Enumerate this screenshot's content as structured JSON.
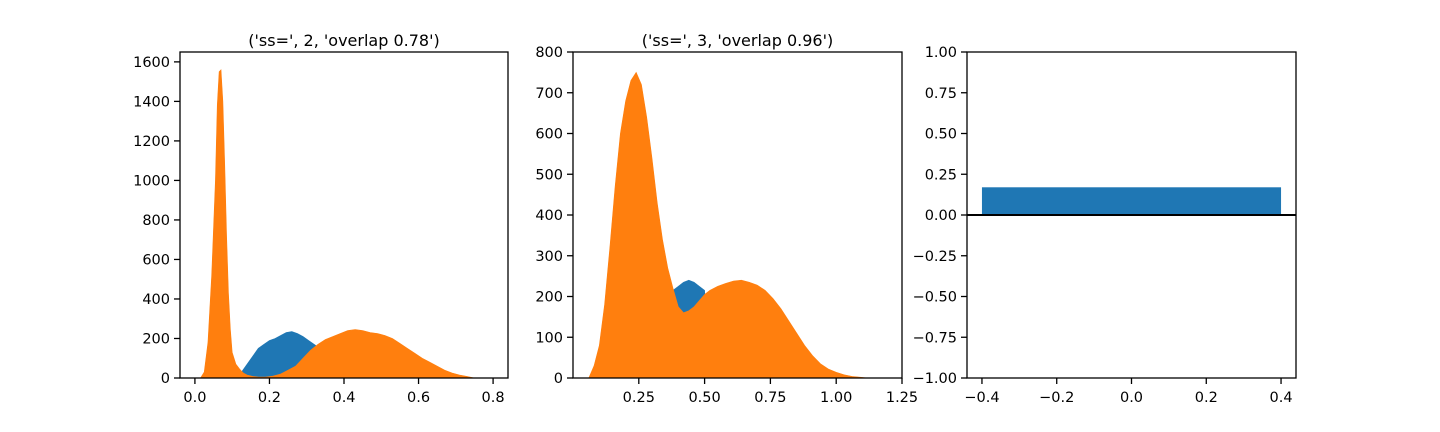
{
  "chart_data": [
    {
      "type": "histogram",
      "title": "('ss=', 2, 'overlap 0.78')",
      "xlim": [
        -0.04,
        0.84
      ],
      "ylim": [
        0,
        1650
      ],
      "xticks": [
        0.0,
        0.2,
        0.4,
        0.6,
        0.8
      ],
      "xtick_labels": [
        "0.0",
        "0.2",
        "0.4",
        "0.6",
        "0.8"
      ],
      "yticks": [
        0,
        200,
        400,
        600,
        800,
        1000,
        1200,
        1400,
        1600
      ],
      "ytick_labels": [
        "0",
        "200",
        "400",
        "600",
        "800",
        "1000",
        "1200",
        "1400",
        "1600"
      ],
      "grid": false,
      "series": [
        {
          "color": "#1f77b4",
          "points": [
            [
              0.11,
              0
            ],
            [
              0.125,
              30
            ],
            [
              0.14,
              70
            ],
            [
              0.155,
              110
            ],
            [
              0.17,
              150
            ],
            [
              0.185,
              170
            ],
            [
              0.2,
              190
            ],
            [
              0.215,
              200
            ],
            [
              0.23,
              215
            ],
            [
              0.245,
              230
            ],
            [
              0.26,
              235
            ],
            [
              0.275,
              225
            ],
            [
              0.29,
              210
            ],
            [
              0.305,
              190
            ],
            [
              0.32,
              170
            ],
            [
              0.335,
              150
            ],
            [
              0.35,
              0
            ]
          ]
        },
        {
          "color": "#ff7f0e",
          "points": [
            [
              0.015,
              0
            ],
            [
              0.025,
              30
            ],
            [
              0.035,
              180
            ],
            [
              0.045,
              520
            ],
            [
              0.055,
              1000
            ],
            [
              0.06,
              1380
            ],
            [
              0.065,
              1550
            ],
            [
              0.07,
              1560
            ],
            [
              0.075,
              1400
            ],
            [
              0.08,
              1080
            ],
            [
              0.085,
              720
            ],
            [
              0.09,
              430
            ],
            [
              0.095,
              250
            ],
            [
              0.1,
              130
            ],
            [
              0.11,
              70
            ],
            [
              0.12,
              45
            ],
            [
              0.13,
              25
            ],
            [
              0.14,
              15
            ],
            [
              0.155,
              8
            ],
            [
              0.17,
              5
            ],
            [
              0.19,
              5
            ],
            [
              0.21,
              10
            ],
            [
              0.23,
              20
            ],
            [
              0.25,
              40
            ],
            [
              0.27,
              60
            ],
            [
              0.29,
              100
            ],
            [
              0.31,
              140
            ],
            [
              0.33,
              170
            ],
            [
              0.35,
              195
            ],
            [
              0.37,
              210
            ],
            [
              0.39,
              225
            ],
            [
              0.41,
              240
            ],
            [
              0.43,
              245
            ],
            [
              0.45,
              240
            ],
            [
              0.47,
              230
            ],
            [
              0.49,
              225
            ],
            [
              0.51,
              215
            ],
            [
              0.53,
              200
            ],
            [
              0.55,
              175
            ],
            [
              0.57,
              150
            ],
            [
              0.59,
              125
            ],
            [
              0.61,
              100
            ],
            [
              0.63,
              80
            ],
            [
              0.65,
              60
            ],
            [
              0.67,
              40
            ],
            [
              0.69,
              25
            ],
            [
              0.71,
              15
            ],
            [
              0.73,
              8
            ],
            [
              0.75,
              0
            ]
          ]
        }
      ]
    },
    {
      "type": "histogram",
      "title": "('ss=', 3, 'overlap 0.96')",
      "xlim": [
        0.0,
        1.25
      ],
      "ylim": [
        0,
        800
      ],
      "xticks": [
        0.25,
        0.5,
        0.75,
        1.0,
        1.25
      ],
      "xtick_labels": [
        "0.25",
        "0.50",
        "0.75",
        "1.00",
        "1.25"
      ],
      "yticks": [
        0,
        100,
        200,
        300,
        400,
        500,
        600,
        700,
        800
      ],
      "ytick_labels": [
        "0",
        "100",
        "200",
        "300",
        "400",
        "500",
        "600",
        "700",
        "800"
      ],
      "grid": false,
      "series": [
        {
          "color": "#1f77b4",
          "points": [
            [
              0.34,
              0
            ],
            [
              0.36,
              200
            ],
            [
              0.38,
              215
            ],
            [
              0.4,
              225
            ],
            [
              0.42,
              235
            ],
            [
              0.44,
              240
            ],
            [
              0.46,
              235
            ],
            [
              0.48,
              225
            ],
            [
              0.5,
              215
            ],
            [
              0.52,
              0
            ]
          ]
        },
        {
          "color": "#ff7f0e",
          "points": [
            [
              0.06,
              0
            ],
            [
              0.08,
              30
            ],
            [
              0.1,
              80
            ],
            [
              0.12,
              180
            ],
            [
              0.14,
              320
            ],
            [
              0.16,
              470
            ],
            [
              0.18,
              600
            ],
            [
              0.2,
              680
            ],
            [
              0.22,
              730
            ],
            [
              0.24,
              750
            ],
            [
              0.26,
              720
            ],
            [
              0.28,
              640
            ],
            [
              0.3,
              540
            ],
            [
              0.32,
              430
            ],
            [
              0.34,
              340
            ],
            [
              0.36,
              270
            ],
            [
              0.38,
              220
            ],
            [
              0.4,
              175
            ],
            [
              0.42,
              160
            ],
            [
              0.44,
              165
            ],
            [
              0.46,
              175
            ],
            [
              0.48,
              190
            ],
            [
              0.5,
              205
            ],
            [
              0.52,
              215
            ],
            [
              0.55,
              225
            ],
            [
              0.58,
              232
            ],
            [
              0.61,
              238
            ],
            [
              0.64,
              240
            ],
            [
              0.67,
              235
            ],
            [
              0.7,
              228
            ],
            [
              0.73,
              215
            ],
            [
              0.76,
              195
            ],
            [
              0.79,
              170
            ],
            [
              0.82,
              140
            ],
            [
              0.85,
              110
            ],
            [
              0.88,
              80
            ],
            [
              0.91,
              55
            ],
            [
              0.94,
              35
            ],
            [
              0.97,
              22
            ],
            [
              1.0,
              14
            ],
            [
              1.03,
              8
            ],
            [
              1.06,
              4
            ],
            [
              1.09,
              2
            ],
            [
              1.12,
              0
            ]
          ]
        }
      ]
    },
    {
      "type": "bar",
      "title": "",
      "xlim": [
        -0.44,
        0.44
      ],
      "ylim": [
        -1.0,
        1.0
      ],
      "xticks": [
        -0.4,
        -0.2,
        0.0,
        0.2,
        0.4
      ],
      "xtick_labels": [
        "−0.4",
        "−0.2",
        "0.0",
        "0.2",
        "0.4"
      ],
      "yticks": [
        -1.0,
        -0.75,
        -0.5,
        -0.25,
        0.0,
        0.25,
        0.5,
        0.75,
        1.0
      ],
      "ytick_labels": [
        "−1.00",
        "−0.75",
        "−0.50",
        "−0.25",
        "0.00",
        "0.25",
        "0.50",
        "0.75",
        "1.00"
      ],
      "grid": false,
      "bars": [
        {
          "x": 0.0,
          "width": 0.8,
          "value": 0.17,
          "color": "#1f77b4"
        }
      ],
      "hline": {
        "y": 0.0,
        "color": "#000000"
      }
    }
  ]
}
